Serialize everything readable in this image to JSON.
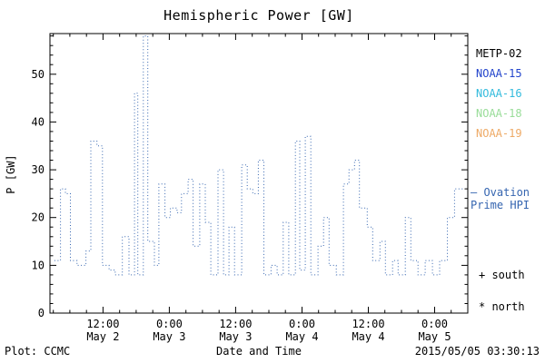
{
  "title": "Hemispheric Power [GW]",
  "ylabel": "P [GW]",
  "footer": {
    "credit": "Plot: CCMC",
    "xlabel": "Date and Time",
    "timestamp": "2015/05/05 03:30:13"
  },
  "legend": {
    "satellites": [
      {
        "label": "METP-02",
        "color": "#000000"
      },
      {
        "label": "NOAA-15",
        "color": "#2244cc"
      },
      {
        "label": "NOAA-16",
        "color": "#33bbdd"
      },
      {
        "label": "NOAA-18",
        "color": "#99dd99"
      },
      {
        "label": "NOAA-19",
        "color": "#eeaa66"
      }
    ],
    "series_label_line1": "— Ovation",
    "series_label_line2": "Prime HPI",
    "south_marker": "+ south",
    "north_marker": "* north"
  },
  "chart_data": {
    "type": "line",
    "style": "dotted-step",
    "title": "Hemispheric Power [GW]",
    "xlabel": "Date and Time",
    "ylabel": "P [GW]",
    "line_color": "#3565b0",
    "ylim": [
      0,
      58.5
    ],
    "yticks": [
      0,
      10,
      20,
      30,
      40,
      50
    ],
    "xlim_hours": [
      2.4,
      78
    ],
    "end_hour": 77.2,
    "xticks": [
      {
        "hour": 12,
        "time": "12:00",
        "date": "May 2"
      },
      {
        "hour": 24,
        "time": "0:00",
        "date": "May 3"
      },
      {
        "hour": 36,
        "time": "12:00",
        "date": "May 3"
      },
      {
        "hour": 48,
        "time": "0:00",
        "date": "May 4"
      },
      {
        "hour": 60,
        "time": "12:00",
        "date": "May 4"
      },
      {
        "hour": 72,
        "time": "0:00",
        "date": "May 5"
      }
    ],
    "steps": [
      [
        3.2,
        11
      ],
      [
        4.3,
        26
      ],
      [
        5.2,
        25
      ],
      [
        6.1,
        11
      ],
      [
        7.3,
        10
      ],
      [
        8.9,
        13
      ],
      [
        9.8,
        36
      ],
      [
        10.9,
        35
      ],
      [
        11.9,
        10
      ],
      [
        13.1,
        9
      ],
      [
        14.2,
        8
      ],
      [
        15.5,
        16
      ],
      [
        16.7,
        8
      ],
      [
        17.7,
        46
      ],
      [
        18.3,
        8
      ],
      [
        19.3,
        58
      ],
      [
        20.1,
        15
      ],
      [
        21.3,
        10
      ],
      [
        22.1,
        27
      ],
      [
        23.2,
        20
      ],
      [
        24.2,
        22
      ],
      [
        25.4,
        21
      ],
      [
        26.2,
        25
      ],
      [
        27.4,
        28
      ],
      [
        28.3,
        14
      ],
      [
        29.5,
        27
      ],
      [
        30.5,
        19
      ],
      [
        31.5,
        8
      ],
      [
        32.8,
        30
      ],
      [
        33.8,
        8
      ],
      [
        34.8,
        18
      ],
      [
        35.8,
        8
      ],
      [
        37.1,
        31
      ],
      [
        38.1,
        26
      ],
      [
        39.1,
        25
      ],
      [
        40.1,
        32
      ],
      [
        41.1,
        8
      ],
      [
        42.4,
        10
      ],
      [
        43.5,
        8
      ],
      [
        44.6,
        19
      ],
      [
        45.6,
        8
      ],
      [
        46.8,
        36
      ],
      [
        47.6,
        9
      ],
      [
        48.6,
        37
      ],
      [
        49.6,
        8
      ],
      [
        50.9,
        14
      ],
      [
        51.9,
        20
      ],
      [
        52.9,
        10
      ],
      [
        54.2,
        8
      ],
      [
        55.5,
        27
      ],
      [
        56.5,
        30
      ],
      [
        57.5,
        32
      ],
      [
        58.4,
        22
      ],
      [
        59.8,
        18
      ],
      [
        60.8,
        11
      ],
      [
        62.1,
        15
      ],
      [
        63.1,
        8
      ],
      [
        64.4,
        11
      ],
      [
        65.4,
        8
      ],
      [
        66.7,
        20
      ],
      [
        67.7,
        11
      ],
      [
        69.0,
        8
      ],
      [
        70.3,
        11
      ],
      [
        71.6,
        8
      ],
      [
        72.9,
        11
      ],
      [
        74.3,
        20
      ],
      [
        75.6,
        26
      ]
    ]
  }
}
